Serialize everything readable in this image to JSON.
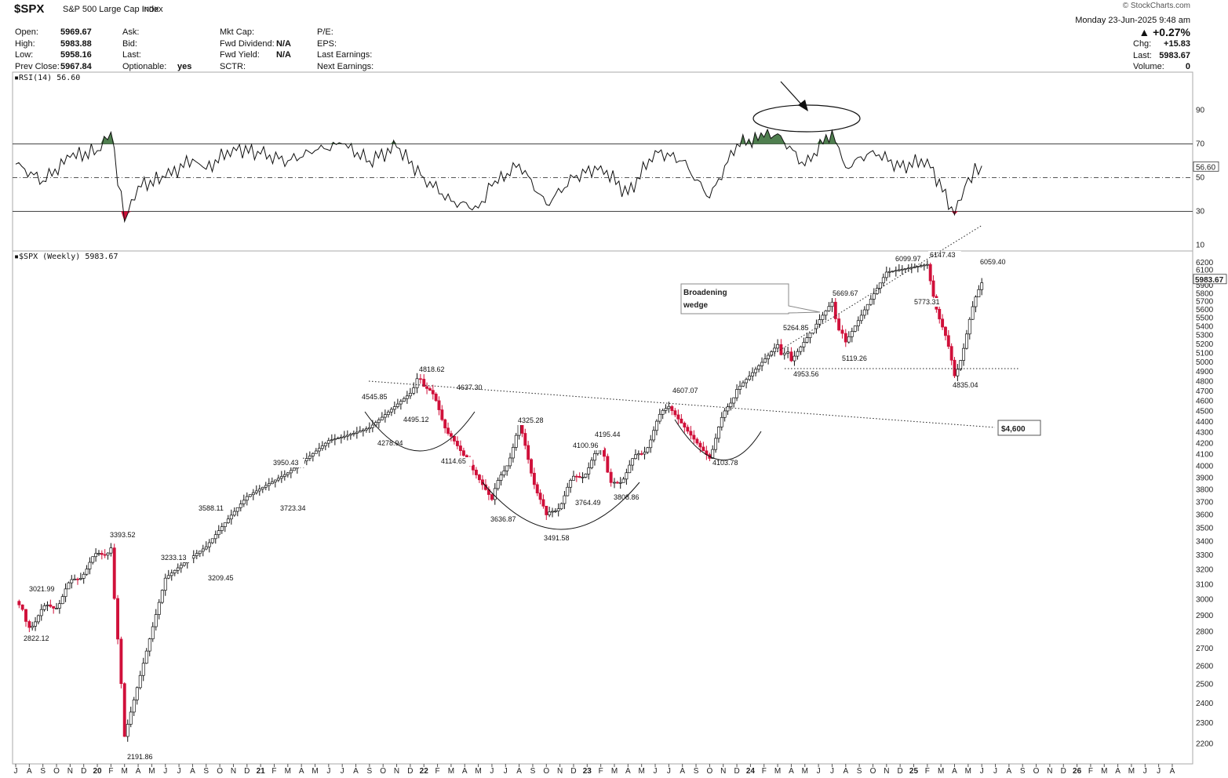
{
  "header": {
    "symbol": "$SPX",
    "name": "S&P 500 Large Cap Index",
    "exchange": "INDX",
    "logo": "© StockCharts.com",
    "datetime": "Monday  23-Jun-2025  9:48 am",
    "change_pct": "▲ +0.27%",
    "quotes": [
      {
        "label": "Open:",
        "value": "5969.67"
      },
      {
        "label": "High:",
        "value": "5983.88"
      },
      {
        "label": "Low:",
        "value": "5958.16"
      },
      {
        "label": "Prev Close:",
        "value": "5967.84"
      }
    ],
    "quotes2": [
      {
        "label": "Ask:",
        "value": ""
      },
      {
        "label": "Bid:",
        "value": ""
      },
      {
        "label": "Last:",
        "value": ""
      },
      {
        "label": "Optionable:",
        "value": "yes"
      }
    ],
    "quotes3": [
      {
        "label": "Mkt Cap:",
        "value": ""
      },
      {
        "label": "Fwd Dividend:",
        "value": "N/A"
      },
      {
        "label": "Fwd Yield:",
        "value": "N/A"
      },
      {
        "label": "SCTR:",
        "value": ""
      }
    ],
    "quotes4": [
      {
        "label": "P/E:",
        "value": ""
      },
      {
        "label": "EPS:",
        "value": ""
      },
      {
        "label": "Last Earnings:",
        "value": ""
      },
      {
        "label": "Next Earnings:",
        "value": ""
      }
    ],
    "quotes5": [
      {
        "label": "Chg:",
        "value": "+15.83"
      },
      {
        "label": "Last:",
        "value": "5983.67"
      },
      {
        "label": "Volume:",
        "value": "0"
      }
    ]
  },
  "rsi_panel": {
    "label": "RSI(14) 56.60",
    "current": "56.60"
  },
  "price_panel": {
    "label": "$SPX (Weekly) 5983.67",
    "current": "5983.67"
  },
  "annotations": {
    "wedge_label_1": "Broadening",
    "wedge_label_2": "wedge",
    "target_label": "$4,600"
  },
  "colors": {
    "up": "#ffffff",
    "down": "#d0103a",
    "rsi_fill": "#4f7f4f",
    "line": "#111111"
  },
  "chart_data": [
    {
      "type": "line",
      "title": "RSI(14) 56.60",
      "ylim": [
        0,
        100
      ],
      "yticks": [
        10,
        30,
        50,
        70,
        90
      ],
      "reference_lines": [
        30,
        50,
        70
      ],
      "x": [
        "2019-07",
        "2019-09",
        "2019-11",
        "2020-01",
        "2020-02",
        "2020-03",
        "2020-04",
        "2020-06",
        "2020-08",
        "2020-09",
        "2020-11",
        "2021-01",
        "2021-03",
        "2021-05",
        "2021-07",
        "2021-09",
        "2021-11",
        "2022-01",
        "2022-03",
        "2022-05",
        "2022-06",
        "2022-08",
        "2022-10",
        "2022-12",
        "2023-02",
        "2023-04",
        "2023-06",
        "2023-08",
        "2023-10",
        "2023-12",
        "2024-02",
        "2024-03",
        "2024-05",
        "2024-07",
        "2024-08",
        "2024-10",
        "2024-12",
        "2025-02",
        "2025-04",
        "2025-05",
        "2025-06"
      ],
      "y": [
        58,
        48,
        62,
        66,
        77,
        24,
        45,
        50,
        61,
        55,
        68,
        64,
        60,
        66,
        70,
        60,
        68,
        50,
        36,
        32,
        45,
        58,
        34,
        50,
        57,
        40,
        66,
        60,
        38,
        70,
        74,
        76,
        57,
        78,
        56,
        66,
        56,
        61,
        28,
        50,
        57
      ]
    },
    {
      "type": "candlestick",
      "title": "$SPX (Weekly) 5983.67",
      "ylim": [
        2150,
        6250
      ],
      "log_scale": true,
      "yticks": [
        2200,
        2300,
        2400,
        2500,
        2600,
        2700,
        2800,
        2900,
        3000,
        3100,
        3200,
        3300,
        3400,
        3500,
        3600,
        3700,
        3800,
        3900,
        4000,
        4100,
        4200,
        4300,
        4400,
        4500,
        4600,
        4700,
        4800,
        4900,
        5000,
        5100,
        5200,
        5300,
        5400,
        5500,
        5600,
        5700,
        5800,
        5900,
        6000,
        6100,
        6200
      ],
      "xticks": [
        "J",
        "A",
        "S",
        "O",
        "N",
        "D",
        "20",
        "F",
        "M",
        "A",
        "M",
        "J",
        "J",
        "A",
        "S",
        "O",
        "N",
        "D",
        "21",
        "F",
        "M",
        "A",
        "M",
        "J",
        "J",
        "A",
        "S",
        "O",
        "N",
        "D",
        "22",
        "F",
        "M",
        "A",
        "M",
        "J",
        "J",
        "A",
        "S",
        "O",
        "N",
        "D",
        "23",
        "F",
        "M",
        "A",
        "M",
        "J",
        "J",
        "A",
        "S",
        "O",
        "N",
        "D",
        "24",
        "F",
        "M",
        "A",
        "M",
        "J",
        "J",
        "A",
        "S",
        "O",
        "N",
        "D",
        "25",
        "F",
        "M",
        "A",
        "M",
        "J",
        "J",
        "A",
        "S",
        "O",
        "N",
        "D",
        "26",
        "F",
        "M",
        "A",
        "M",
        "J",
        "J",
        "A"
      ],
      "x": [
        "2019-07",
        "2019-08",
        "2019-10",
        "2019-12",
        "2020-02",
        "2020-03",
        "2020-06",
        "2020-09",
        "2020-12",
        "2021-03",
        "2021-06",
        "2021-09",
        "2021-12",
        "2022-01",
        "2022-03",
        "2022-06",
        "2022-08",
        "2022-10",
        "2022-12",
        "2023-02",
        "2023-03",
        "2023-05",
        "2023-07",
        "2023-10",
        "2023-12",
        "2024-03",
        "2024-04",
        "2024-07",
        "2024-08",
        "2024-11",
        "2025-02",
        "2025-04",
        "2025-06"
      ],
      "y": [
        2990,
        2830,
        2980,
        3230,
        3390,
        2250,
        3110,
        3300,
        3700,
        3950,
        4280,
        4400,
        4700,
        4800,
        4250,
        3700,
        4300,
        3550,
        3900,
        4150,
        3850,
        4150,
        4600,
        4150,
        4770,
        5250,
        5000,
        5600,
        5200,
        6050,
        6150,
        4900,
        5984
      ],
      "price_labels": [
        {
          "text": "3021.99",
          "value": 3021.99
        },
        {
          "text": "2822.12",
          "value": 2822.12
        },
        {
          "text": "3393.52",
          "value": 3393.52
        },
        {
          "text": "2191.86",
          "value": 2191.86
        },
        {
          "text": "3233.13",
          "value": 3233.13
        },
        {
          "text": "3588.11",
          "value": 3588.11
        },
        {
          "text": "3209.45",
          "value": 3209.45
        },
        {
          "text": "3950.43",
          "value": 3950.43
        },
        {
          "text": "3723.34",
          "value": 3723.34
        },
        {
          "text": "4545.85",
          "value": 4545.85
        },
        {
          "text": "4278.94",
          "value": 4278.94
        },
        {
          "text": "4495.12",
          "value": 4495.12
        },
        {
          "text": "4818.62",
          "value": 4818.62
        },
        {
          "text": "4637.30",
          "value": 4637.3
        },
        {
          "text": "4114.65",
          "value": 4114.65
        },
        {
          "text": "4325.28",
          "value": 4325.28
        },
        {
          "text": "3636.87",
          "value": 3636.87
        },
        {
          "text": "3491.58",
          "value": 3491.58
        },
        {
          "text": "4100.96",
          "value": 4100.96
        },
        {
          "text": "3764.49",
          "value": 3764.49
        },
        {
          "text": "4195.44",
          "value": 4195.44
        },
        {
          "text": "3808.86",
          "value": 3808.86
        },
        {
          "text": "4607.07",
          "value": 4607.07
        },
        {
          "text": "4103.78",
          "value": 4103.78
        },
        {
          "text": "5264.85",
          "value": 5264.85
        },
        {
          "text": "4953.56",
          "value": 4953.56
        },
        {
          "text": "5669.67",
          "value": 5669.67
        },
        {
          "text": "5119.26",
          "value": 5119.26
        },
        {
          "text": "6099.97",
          "value": 6099.97
        },
        {
          "text": "6147.43",
          "value": 6147.43
        },
        {
          "text": "5773.31",
          "value": 5773.31
        },
        {
          "text": "4835.04",
          "value": 4835.04
        },
        {
          "text": "6059.40",
          "value": 6059.4
        }
      ]
    }
  ]
}
